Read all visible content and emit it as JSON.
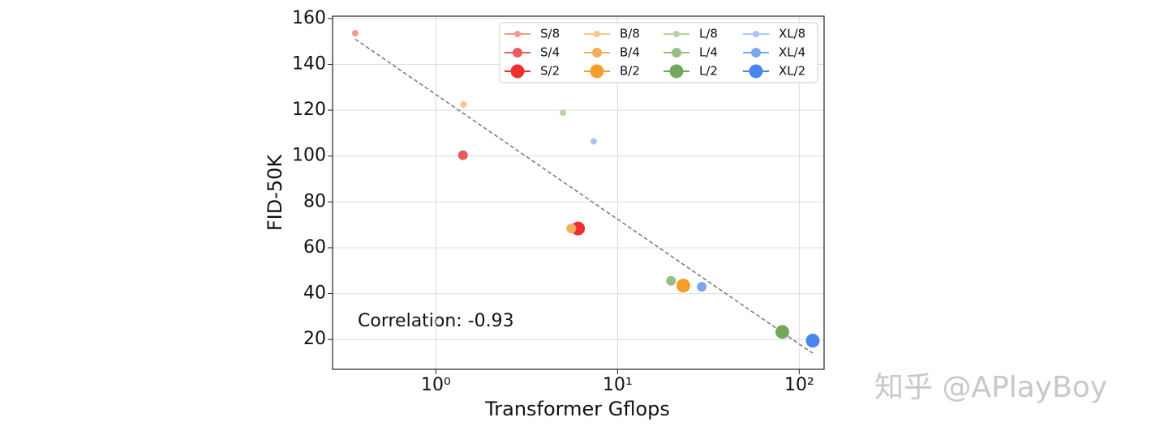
{
  "chart_data": {
    "type": "scatter",
    "x_label": "Transformer Gflops",
    "y_label": "FID-50K",
    "annotation": "Correlation: -0.93",
    "watermark": "知乎 @APlayBoy",
    "xscale": "log",
    "grid": true,
    "legend": "upper right",
    "xlim": [
      0.27,
      137
    ],
    "ylim": [
      7,
      161
    ],
    "xticks": [
      {
        "value": 1,
        "label": "10⁰"
      },
      {
        "value": 10,
        "label": "10¹"
      },
      {
        "value": 100,
        "label": "10²"
      }
    ],
    "yticks": [
      20,
      40,
      60,
      80,
      100,
      120,
      140,
      160
    ],
    "trend_line": {
      "color": "#777777",
      "x": [
        0.36,
        118.64
      ],
      "y": [
        151,
        14
      ]
    },
    "series": [
      {
        "name": "S/8",
        "color": "#f29a8c",
        "x": [
          0.36
        ],
        "values": [
          153.6
        ]
      },
      {
        "name": "S/4",
        "color": "#e85c5c",
        "x": [
          1.41
        ],
        "values": [
          100.4
        ]
      },
      {
        "name": "S/2",
        "color": "#ee2f2f",
        "x": [
          6.06
        ],
        "values": [
          68.4
        ]
      },
      {
        "name": "B/8",
        "color": "#f8c68a",
        "x": [
          1.42
        ],
        "values": [
          122.5
        ]
      },
      {
        "name": "B/4",
        "color": "#f5ad5a",
        "x": [
          5.56
        ],
        "values": [
          68.4
        ]
      },
      {
        "name": "B/2",
        "color": "#f59d2a",
        "x": [
          23.01
        ],
        "values": [
          43.5
        ]
      },
      {
        "name": "L/8",
        "color": "#b4d2a4",
        "x": [
          5.01
        ],
        "values": [
          118.9
        ]
      },
      {
        "name": "L/4",
        "color": "#96bf84",
        "x": [
          19.7
        ],
        "values": [
          45.6
        ]
      },
      {
        "name": "L/2",
        "color": "#74a65c",
        "x": [
          80.71
        ],
        "values": [
          23.3
        ]
      },
      {
        "name": "XL/8",
        "color": "#a9c5f7",
        "x": [
          7.39
        ],
        "values": [
          106.4
        ]
      },
      {
        "name": "XL/4",
        "color": "#7ea6ef",
        "x": [
          29.05
        ],
        "values": [
          43.0
        ]
      },
      {
        "name": "XL/2",
        "color": "#4c84ee",
        "x": [
          118.64
        ],
        "values": [
          19.5
        ]
      }
    ]
  }
}
